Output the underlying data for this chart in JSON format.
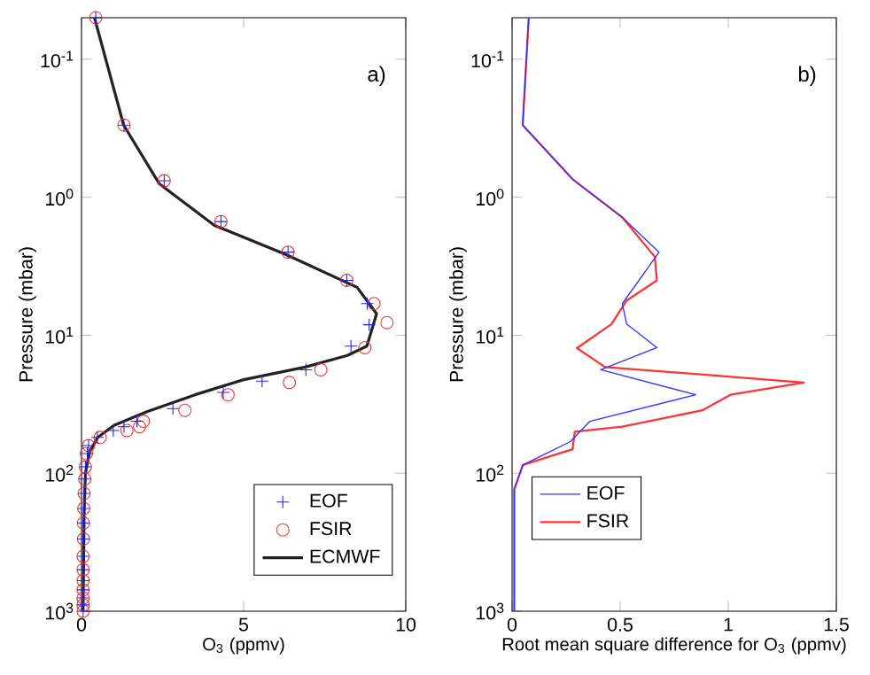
{
  "chart_data": [
    {
      "type": "scatter",
      "xlabel": "O$_{3}$ (ppmv)",
      "ylabel": "Pressure (mbar)",
      "annotations": [
        "a)"
      ],
      "log": "y",
      "legend": "bottom right",
      "xlim": [
        0,
        10
      ],
      "xticks": [
        0,
        5,
        10
      ],
      "ylim": [
        1000,
        0.05
      ],
      "yticks": [
        {
          "value": 1000,
          "label": "10$^{3}$"
        },
        {
          "value": 100,
          "label": "10$^{2}$"
        },
        {
          "value": 10,
          "label": "10$^{1}$"
        },
        {
          "value": 1,
          "label": "10$^{0}$"
        },
        {
          "value": 0.1,
          "label": "10$^{-1}$"
        }
      ],
      "series": [
        {
          "name": "EOF",
          "color": "#2020ee",
          "marker": "cross",
          "x": [
            0.44,
            1.31,
            2.55,
            4.3,
            6.37,
            8.18,
            8.81,
            8.87,
            8.31,
            6.92,
            5.57,
            4.37,
            2.82,
            1.71,
            1.31,
            0.98,
            0.49,
            0.22,
            0.18,
            0.12,
            0.1,
            0.08,
            0.07,
            0.06,
            0.06,
            0.05,
            0.05,
            0.05,
            0.05,
            0.05,
            0.05,
            0.05
          ],
          "values": [
            0.05,
            0.3,
            0.76,
            1.5,
            2.5,
            4.0,
            5.9,
            8.4,
            12,
            17.8,
            21.5,
            26,
            34,
            42,
            46,
            49,
            55,
            63,
            72,
            90,
            110,
            140,
            180,
            230,
            300,
            400,
            500,
            600,
            700,
            800,
            900,
            1000
          ]
        },
        {
          "name": "FSIR",
          "color": "#ee3333",
          "marker": "circle",
          "x": [
            0.44,
            1.31,
            2.55,
            4.3,
            6.37,
            8.18,
            9.02,
            9.42,
            8.74,
            7.38,
            6.41,
            4.52,
            3.19,
            1.91,
            1.79,
            1.4,
            0.58,
            0.22,
            0.15,
            0.12,
            0.1,
            0.08,
            0.07,
            0.06,
            0.06,
            0.05,
            0.05,
            0.05,
            0.05,
            0.05,
            0.05,
            0.05
          ],
          "values": [
            0.05,
            0.3,
            0.76,
            1.5,
            2.5,
            4.0,
            5.9,
            8.1,
            12.3,
            17.8,
            22,
            27,
            35,
            42,
            46,
            49,
            55,
            63,
            72,
            90,
            110,
            140,
            180,
            230,
            300,
            400,
            500,
            600,
            700,
            800,
            900,
            1000
          ]
        },
        {
          "name": "ECMWF",
          "type": "line",
          "color": "#222222",
          "marker": "none",
          "x": [
            0.4,
            1.3,
            2.4,
            4.1,
            6.3,
            8.5,
            9.1,
            8.8,
            8.2,
            6.9,
            5,
            3.5,
            2,
            1,
            0.5,
            0.25,
            0.12,
            0.08,
            0.05
          ],
          "values": [
            0.05,
            0.3,
            0.8,
            1.6,
            2.6,
            4.5,
            7,
            12,
            14,
            17,
            21,
            27,
            36,
            45,
            55,
            70,
            100,
            200,
            1000
          ]
        }
      ]
    },
    {
      "type": "line",
      "xlabel": "Root mean square difference for O$_{3}$ (ppmv)",
      "ylabel": "Pressure (mbar)",
      "annotations": [
        "b)"
      ],
      "log": "y",
      "legend": "bottom left",
      "xlim": [
        0,
        1.5
      ],
      "xticks": [
        0,
        0.5,
        1,
        1.5
      ],
      "ylim": [
        1000,
        0.05
      ],
      "yticks": [
        {
          "value": 1000,
          "label": "10$^{3}$"
        },
        {
          "value": 100,
          "label": "10$^{2}$"
        },
        {
          "value": 10,
          "label": "10$^{1}$"
        },
        {
          "value": 1,
          "label": "10$^{0}$"
        },
        {
          "value": 0.1,
          "label": "10$^{-1}$"
        }
      ],
      "series": [
        {
          "name": "EOF",
          "color": "#3333ff",
          "x": [
            0.077,
            0.049,
            0.28,
            0.51,
            0.68,
            0.51,
            0.53,
            0.67,
            0.41,
            0.85,
            0.36,
            0.27,
            0.05,
            0.01,
            0.01
          ],
          "values": [
            0.05,
            0.3,
            0.74,
            1.4,
            2.5,
            5.9,
            8.3,
            12.3,
            17.8,
            27,
            42,
            59,
            87,
            131,
            1000
          ]
        },
        {
          "name": "FSIR",
          "color": "#ff3333",
          "x": [
            0.077,
            0.049,
            0.28,
            0.51,
            0.66,
            0.67,
            0.53,
            0.46,
            0.3,
            0.43,
            1.35,
            1.01,
            0.88,
            0.51,
            0.29,
            0.28,
            0.05,
            0.01,
            0.01
          ],
          "values": [
            0.05,
            0.3,
            0.74,
            1.4,
            2.7,
            4.0,
            5.6,
            8.3,
            12.4,
            17,
            22,
            27,
            35,
            46,
            50,
            67,
            87,
            131,
            1000
          ]
        }
      ]
    }
  ]
}
